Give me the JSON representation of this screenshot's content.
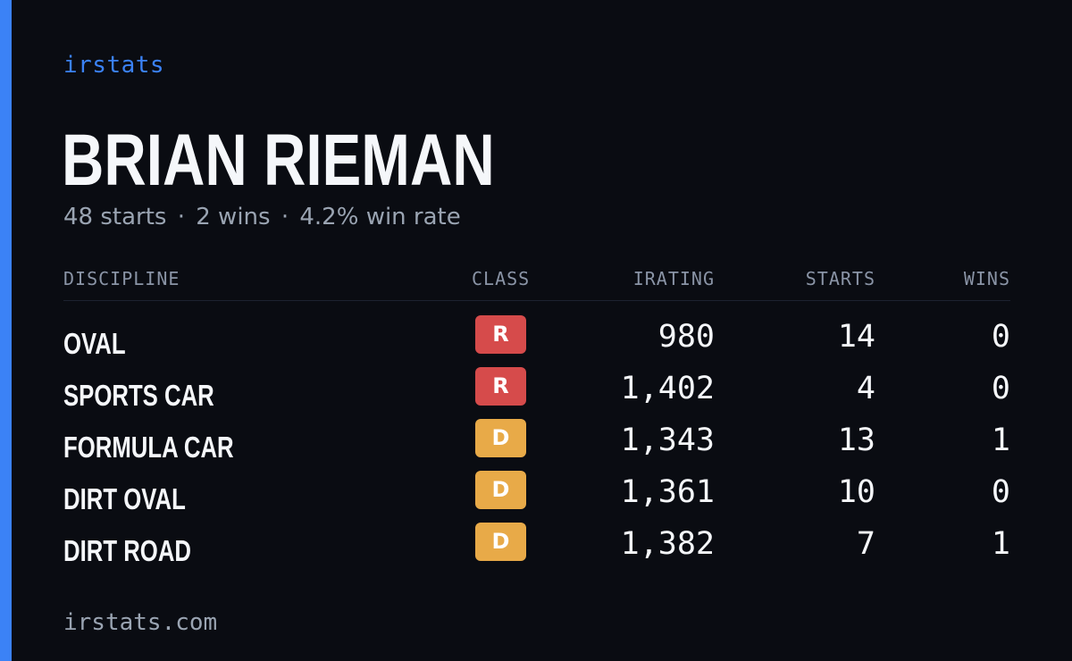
{
  "brand": "irstats",
  "player": {
    "name": "BRIAN RIEMAN",
    "starts_text": "48 starts",
    "separator": "·",
    "wins_text": "2 wins",
    "win_rate_text": "4.2% win rate"
  },
  "table": {
    "headers": {
      "discipline": "DISCIPLINE",
      "class": "CLASS",
      "irating": "IRATING",
      "starts": "STARTS",
      "wins": "WINS"
    },
    "rows": [
      {
        "discipline": "OVAL",
        "class": "R",
        "irating": "980",
        "starts": "14",
        "wins": "0"
      },
      {
        "discipline": "SPORTS CAR",
        "class": "R",
        "irating": "1,402",
        "starts": "4",
        "wins": "0"
      },
      {
        "discipline": "FORMULA CAR",
        "class": "D",
        "irating": "1,343",
        "starts": "13",
        "wins": "1"
      },
      {
        "discipline": "DIRT OVAL",
        "class": "D",
        "irating": "1,361",
        "starts": "10",
        "wins": "0"
      },
      {
        "discipline": "DIRT ROAD",
        "class": "D",
        "irating": "1,382",
        "starts": "7",
        "wins": "1"
      }
    ]
  },
  "colors": {
    "accent": "#3b82f6",
    "background": "#0a0c12",
    "class_r": "#d64b4b",
    "class_d": "#e8aa48"
  },
  "footer": "irstats.com"
}
